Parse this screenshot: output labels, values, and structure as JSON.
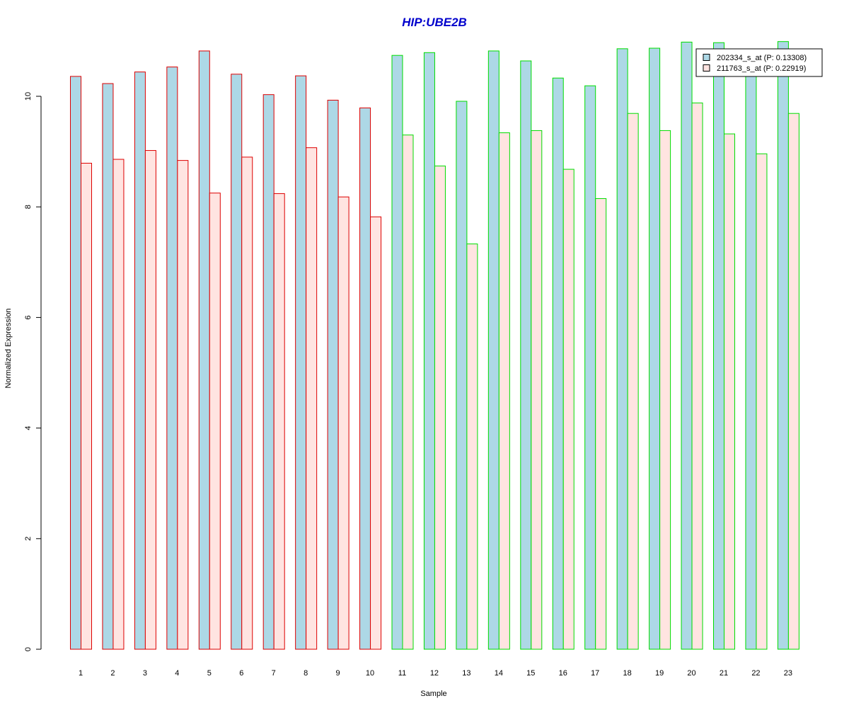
{
  "chart_data": {
    "type": "bar",
    "title": "HIP:UBE2B",
    "xlabel": "Sample",
    "ylabel": "Normalized Expression",
    "ylim": [
      0,
      11
    ],
    "yticks": [
      0,
      2,
      4,
      6,
      8,
      10
    ],
    "grid": false,
    "legend_position": "top-right",
    "categories": [
      "1",
      "2",
      "3",
      "4",
      "5",
      "6",
      "7",
      "8",
      "9",
      "10",
      "11",
      "12",
      "13",
      "14",
      "15",
      "16",
      "17",
      "18",
      "19",
      "20",
      "21",
      "22",
      "23"
    ],
    "groups": [
      {
        "border_color": "#dd0000",
        "samples": [
          "1",
          "2",
          "3",
          "4",
          "5",
          "6",
          "7",
          "8",
          "9",
          "10"
        ]
      },
      {
        "border_color": "#00dd00",
        "samples": [
          "11",
          "12",
          "13",
          "14",
          "15",
          "16",
          "17",
          "18",
          "19",
          "20",
          "21",
          "22",
          "23"
        ]
      }
    ],
    "series": [
      {
        "name": "202334_s_at (P: 0.13308)",
        "fill": "#add8e6",
        "values": [
          10.36,
          10.23,
          10.44,
          10.53,
          10.82,
          10.4,
          10.03,
          10.37,
          9.93,
          9.79,
          10.74,
          10.79,
          9.91,
          10.82,
          10.64,
          10.33,
          10.19,
          10.86,
          10.87,
          10.98,
          10.97,
          10.5,
          10.99
        ]
      },
      {
        "name": "211763_s_at (P: 0.22919)",
        "fill": "#ffe4e1",
        "values": [
          8.79,
          8.86,
          9.02,
          8.84,
          8.25,
          8.9,
          8.24,
          9.07,
          8.18,
          7.82,
          9.3,
          8.74,
          7.33,
          9.34,
          9.38,
          8.68,
          8.15,
          9.69,
          9.38,
          9.88,
          9.32,
          8.96,
          9.69
        ]
      }
    ]
  },
  "colors": {
    "title": "#0000cc"
  }
}
